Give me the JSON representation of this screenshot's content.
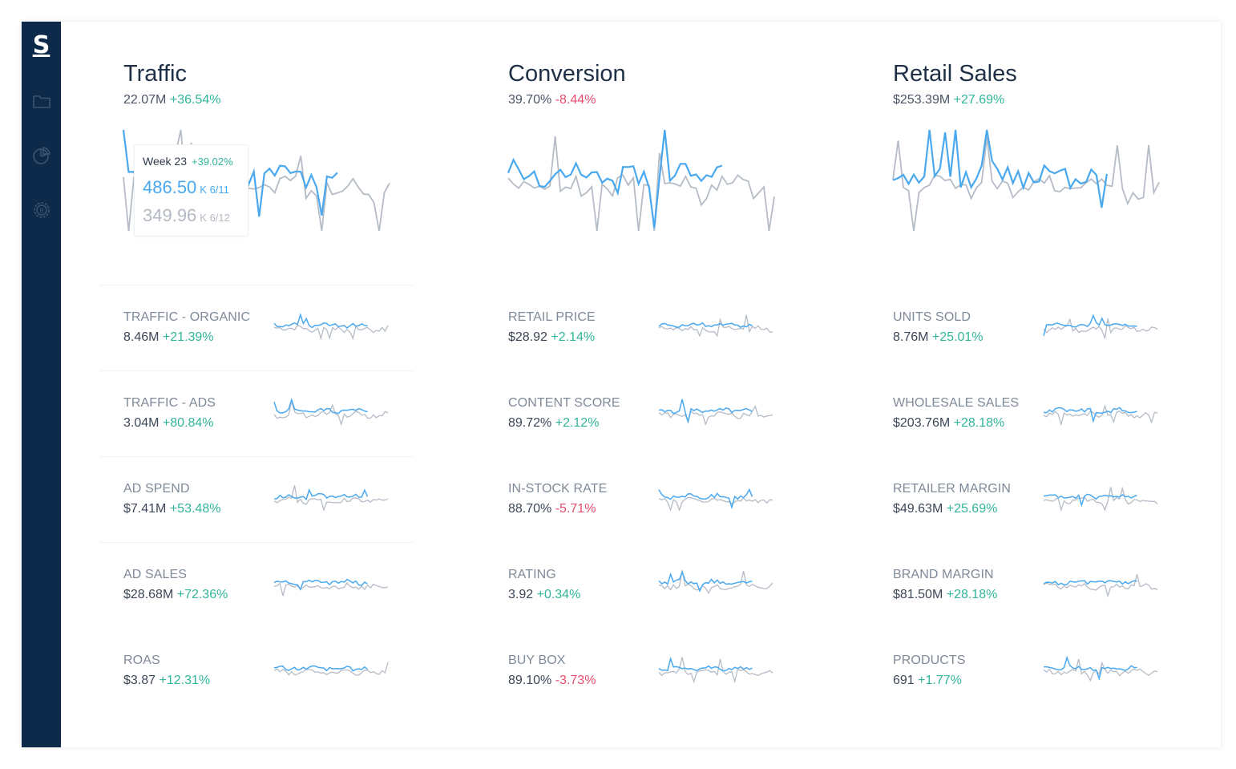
{
  "app": {
    "logo": "S"
  },
  "sidebar": {
    "icons": [
      {
        "name": "folder-icon"
      },
      {
        "name": "pie-chart-icon"
      },
      {
        "name": "settings-icon"
      }
    ]
  },
  "colors": {
    "current": "#4aa8ee",
    "previous": "#b5bcc6",
    "positive": "#31b59a",
    "negative": "#e64d6d"
  },
  "columns": [
    {
      "title": "Traffic",
      "value": "22.07M",
      "change": "+36.54%",
      "change_sign": "pos",
      "metrics": [
        {
          "label": "TRAFFIC - ORGANIC",
          "value": "8.46M",
          "change": "+21.39%",
          "change_sign": "pos"
        },
        {
          "label": "TRAFFIC - ADS",
          "value": "3.04M",
          "change": "+80.84%",
          "change_sign": "pos"
        },
        {
          "label": "AD SPEND",
          "value": "$7.41M",
          "change": "+53.48%",
          "change_sign": "pos"
        },
        {
          "label": "AD SALES",
          "value": "$28.68M",
          "change": "+72.36%",
          "change_sign": "pos"
        },
        {
          "label": "ROAS",
          "value": "$3.87",
          "change": "+12.31%",
          "change_sign": "pos"
        }
      ]
    },
    {
      "title": "Conversion",
      "value": "39.70%",
      "change": "-8.44%",
      "change_sign": "neg",
      "metrics": [
        {
          "label": "RETAIL PRICE",
          "value": "$28.92",
          "change": "+2.14%",
          "change_sign": "pos"
        },
        {
          "label": "CONTENT SCORE",
          "value": "89.72%",
          "change": "+2.12%",
          "change_sign": "pos"
        },
        {
          "label": "IN-STOCK RATE",
          "value": "88.70%",
          "change": "-5.71%",
          "change_sign": "neg"
        },
        {
          "label": "RATING",
          "value": "3.92",
          "change": "+0.34%",
          "change_sign": "pos"
        },
        {
          "label": "BUY BOX",
          "value": "89.10%",
          "change": "-3.73%",
          "change_sign": "neg"
        }
      ]
    },
    {
      "title": "Retail Sales",
      "value": "$253.39M",
      "change": "+27.69%",
      "change_sign": "pos",
      "metrics": [
        {
          "label": "UNITS SOLD",
          "value": "8.76M",
          "change": "+25.01%",
          "change_sign": "pos"
        },
        {
          "label": "WHOLESALE SALES",
          "value": "$203.76M",
          "change": "+28.18%",
          "change_sign": "pos"
        },
        {
          "label": "RETAILER MARGIN",
          "value": "$49.63M",
          "change": "+25.69%",
          "change_sign": "pos"
        },
        {
          "label": "BRAND MARGIN",
          "value": "$81.50M",
          "change": "+28.18%",
          "change_sign": "pos"
        },
        {
          "label": "PRODUCTS",
          "value": "691",
          "change": "+1.77%",
          "change_sign": "pos"
        }
      ]
    }
  ],
  "tooltip": {
    "week": "Week 23",
    "change": "+39.02%",
    "current_value": "486.50",
    "current_unit": "K 6/11",
    "previous_value": "349.96",
    "previous_unit": "K 6/12"
  }
}
